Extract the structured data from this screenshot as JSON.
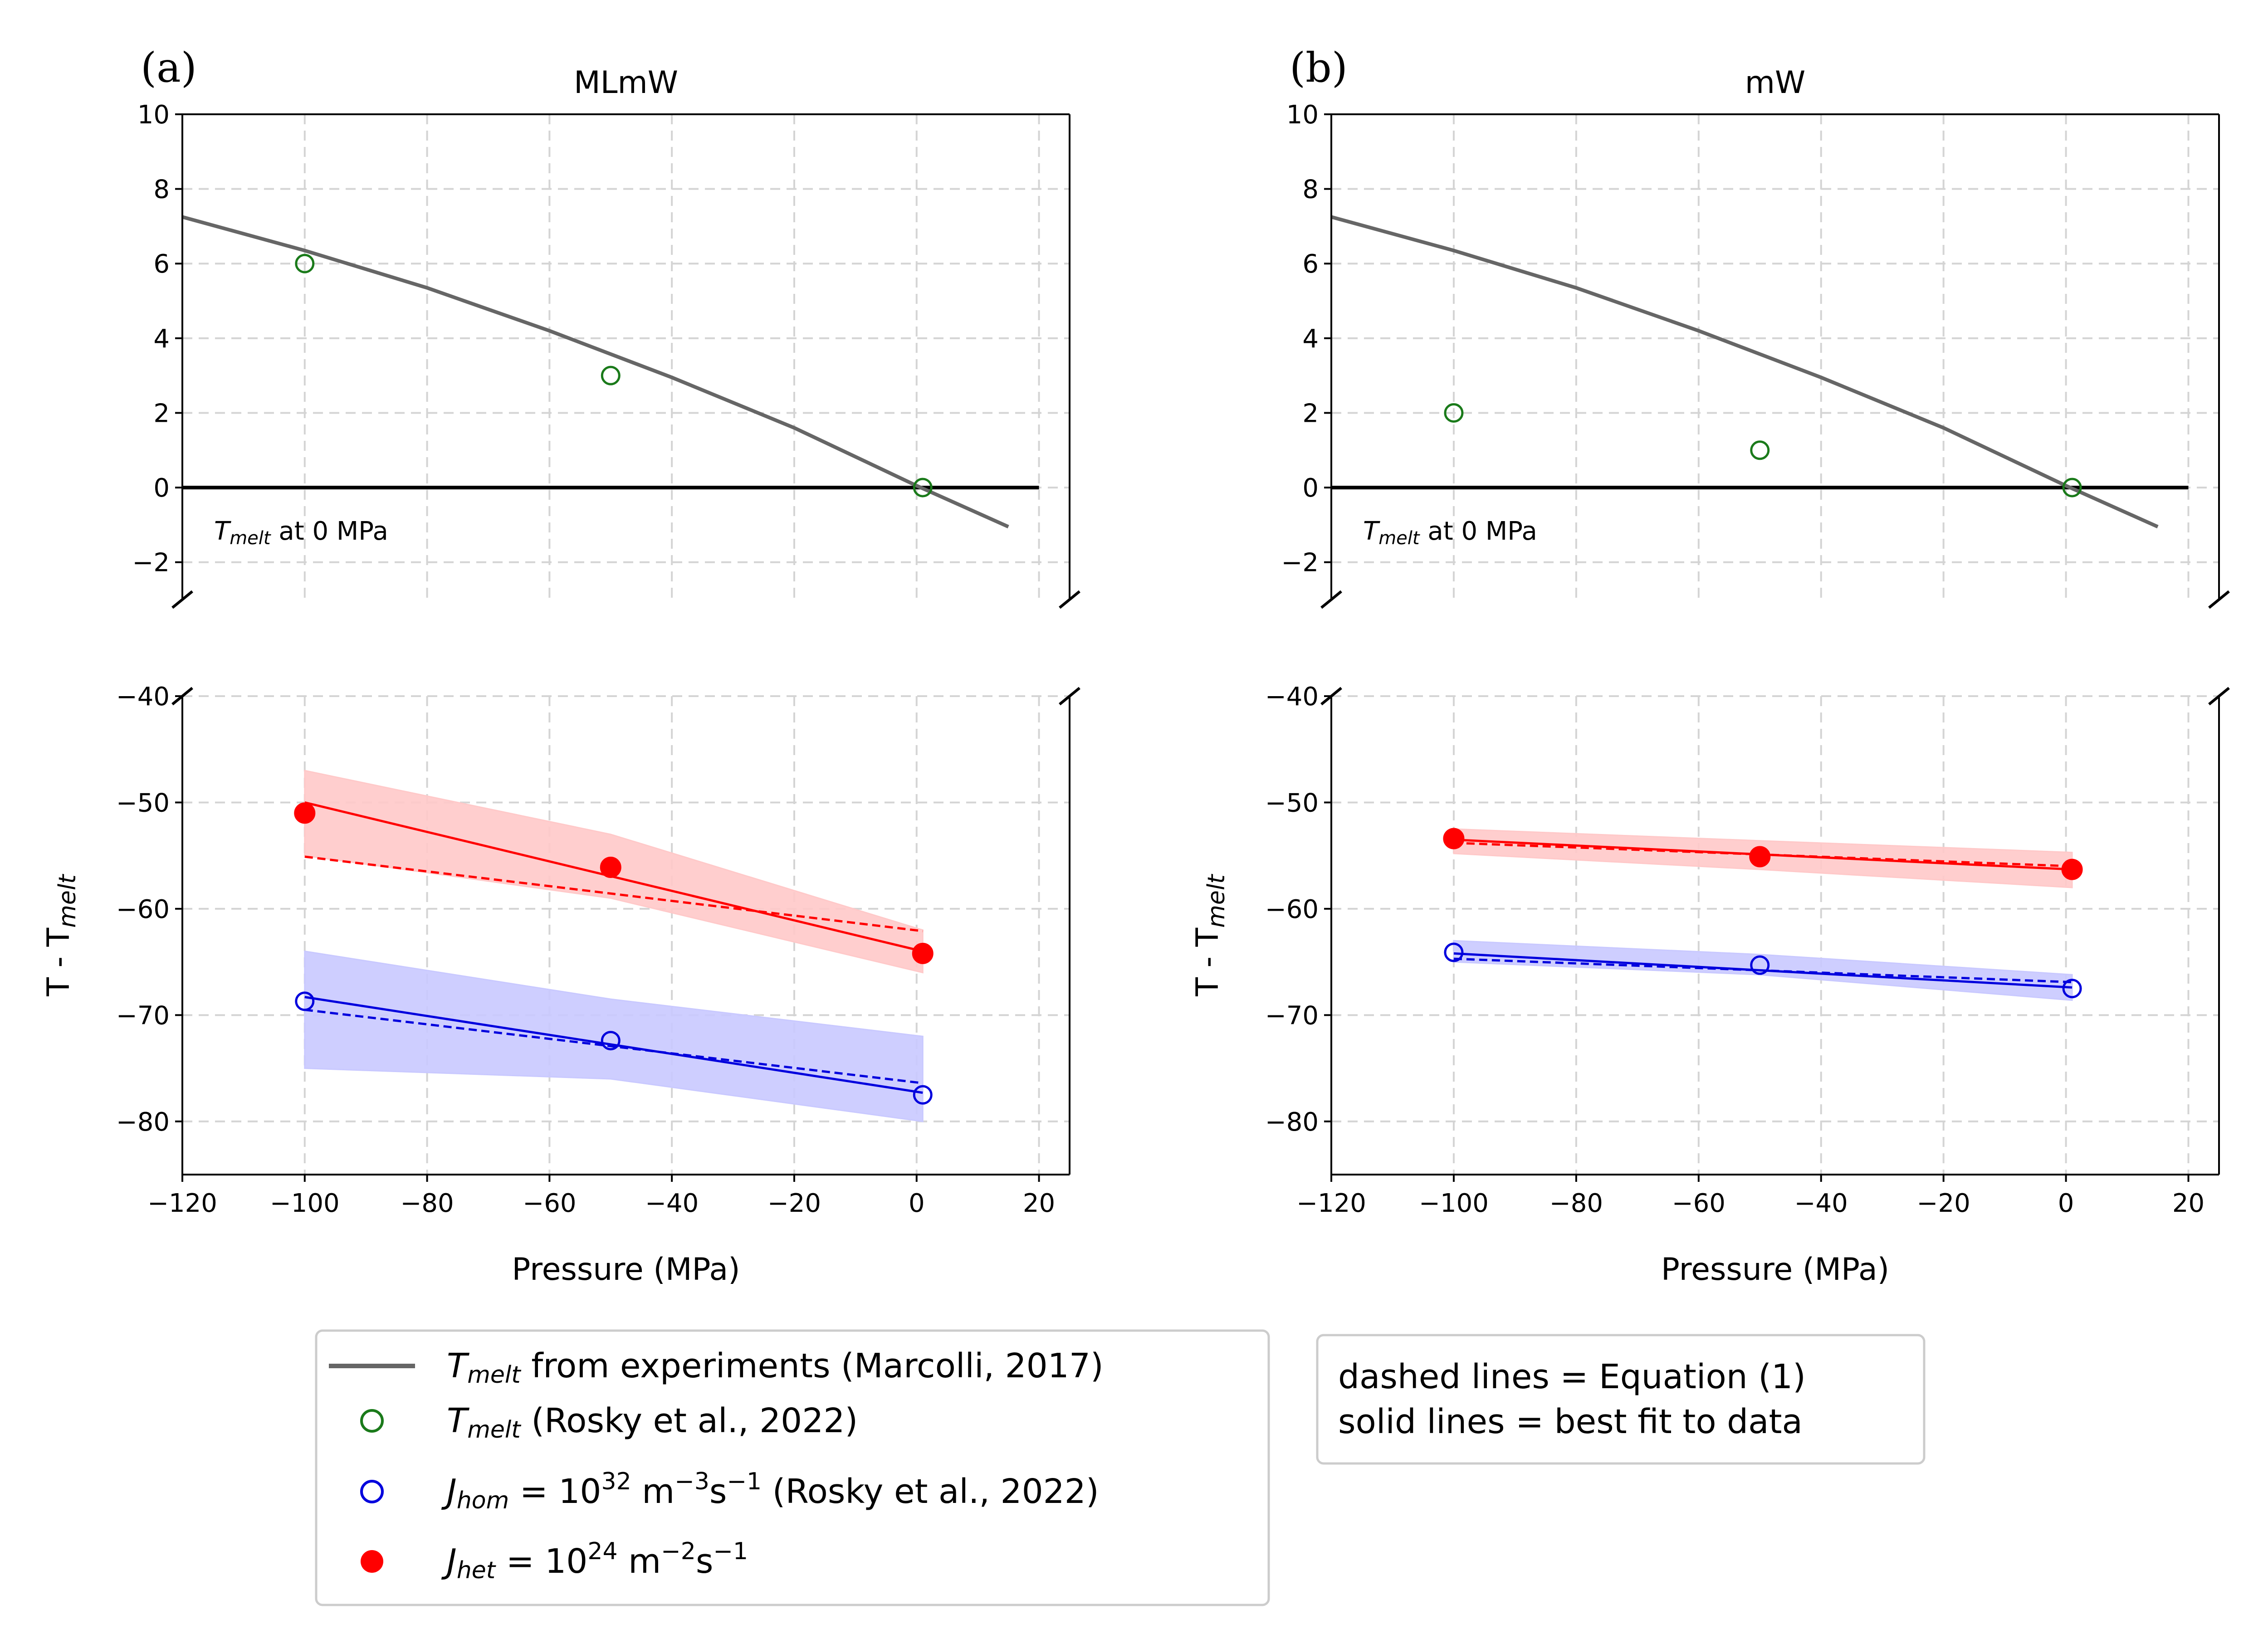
{
  "legend": {
    "items": [
      {
        "text": "T_melt from experiments (Marcolli, 2017)"
      },
      {
        "text": "T_melt (Rosky et al., 2022)"
      },
      {
        "text": "J_hom = 10^32 m^-3 s^-1 (Rosky et al., 2022)"
      },
      {
        "text": "J_het = 10^24 m^-2 s^-1"
      }
    ]
  },
  "note_box": {
    "line1": "dashed lines = Equation (1)",
    "line2": "solid lines = best fit to data"
  },
  "colors": {
    "tmelt_curve": "#666666",
    "rosky_tmelt": "#1a7a1a",
    "hom": "#0000dd",
    "het": "#ff0000",
    "hom_band": "#c9c9ff",
    "het_band": "#ffc9c9"
  },
  "chart_data": [
    {
      "panel": "(a)",
      "title": "MLmW",
      "type": "line",
      "xlabel": "Pressure (MPa)",
      "ylabel": "T - T_melt",
      "xlim": [
        -120,
        25
      ],
      "top_axis": {
        "ylim": [
          -3,
          10
        ],
        "yticks": [
          -2,
          0,
          2,
          4,
          6,
          8,
          10
        ]
      },
      "bottom_axis": {
        "ylim": [
          -85,
          -40
        ],
        "yticks": [
          -40,
          -50,
          -60,
          -70,
          -80
        ]
      },
      "xticks": [
        -120,
        -100,
        -80,
        -60,
        -40,
        -20,
        0,
        20
      ],
      "annotation": "T_melt at 0 MPa",
      "grid": true,
      "tmelt_curve": {
        "x": [
          -120,
          -100,
          -80,
          -60,
          -40,
          -20,
          0,
          15
        ],
        "y": [
          7.25,
          6.35,
          5.35,
          4.2,
          2.95,
          1.6,
          0.05,
          -1.05
        ]
      },
      "tmelt_rosky": {
        "x": [
          -100,
          -50,
          1
        ],
        "y": [
          6,
          3,
          0
        ]
      },
      "hom": {
        "points": {
          "x": [
            -100,
            -50,
            1
          ],
          "y": [
            -68.7,
            -72.4,
            -77.5
          ]
        },
        "fit": {
          "x": [
            -100,
            1
          ],
          "y": [
            -68.3,
            -77.3
          ]
        },
        "equation": {
          "x": [
            -100,
            1
          ],
          "y": [
            -69.5,
            -76.4
          ]
        },
        "band": {
          "x": [
            -100,
            -50,
            1
          ],
          "upper": [
            -64,
            -68.5,
            -72
          ],
          "lower": [
            -75,
            -76,
            -80
          ]
        }
      },
      "het": {
        "points": {
          "x": [
            -100,
            -50,
            1
          ],
          "y": [
            -51,
            -56.1,
            -64.2
          ]
        },
        "fit": {
          "x": [
            -100,
            1
          ],
          "y": [
            -50,
            -64
          ]
        },
        "equation": {
          "x": [
            -100,
            1
          ],
          "y": [
            -55.1,
            -62.1
          ]
        },
        "band": {
          "x": [
            -100,
            -50,
            1
          ],
          "upper": [
            -47,
            -53,
            -62
          ],
          "lower": [
            -55,
            -59,
            -66
          ]
        }
      }
    },
    {
      "panel": "(b)",
      "title": "mW",
      "type": "line",
      "xlabel": "Pressure (MPa)",
      "ylabel": "T - T_melt",
      "xlim": [
        -120,
        25
      ],
      "top_axis": {
        "ylim": [
          -3,
          10
        ],
        "yticks": [
          -2,
          0,
          2,
          4,
          6,
          8,
          10
        ]
      },
      "bottom_axis": {
        "ylim": [
          -85,
          -40
        ],
        "yticks": [
          -40,
          -50,
          -60,
          -70,
          -80
        ]
      },
      "xticks": [
        -120,
        -100,
        -80,
        -60,
        -40,
        -20,
        0,
        20
      ],
      "annotation": "T_melt at 0 MPa",
      "grid": true,
      "tmelt_curve": {
        "x": [
          -120,
          -100,
          -80,
          -60,
          -40,
          -20,
          0,
          15
        ],
        "y": [
          7.25,
          6.35,
          5.35,
          4.2,
          2.95,
          1.6,
          0.05,
          -1.05
        ]
      },
      "tmelt_rosky": {
        "x": [
          -100,
          -50,
          1
        ],
        "y": [
          2,
          1,
          0
        ]
      },
      "hom": {
        "points": {
          "x": [
            -100,
            -50,
            1
          ],
          "y": [
            -64.1,
            -65.3,
            -67.5
          ]
        },
        "fit": {
          "x": [
            -100,
            1
          ],
          "y": [
            -64.2,
            -67.4
          ]
        },
        "equation": {
          "x": [
            -100,
            1
          ],
          "y": [
            -64.7,
            -66.9
          ]
        },
        "band": {
          "x": [
            -100,
            -50,
            1
          ],
          "upper": [
            -63,
            -64.3,
            -66.2
          ],
          "lower": [
            -65,
            -66.2,
            -68.6
          ]
        }
      },
      "het": {
        "points": {
          "x": [
            -100,
            -50,
            1
          ],
          "y": [
            -53.4,
            -55.1,
            -56.3
          ]
        },
        "fit": {
          "x": [
            -100,
            1
          ],
          "y": [
            -53.5,
            -56.3
          ]
        },
        "equation": {
          "x": [
            -100,
            1
          ],
          "y": [
            -53.8,
            -56.0
          ]
        },
        "band": {
          "x": [
            -100,
            -50,
            1
          ],
          "upper": [
            -52.5,
            -53.6,
            -54.7
          ],
          "lower": [
            -54.8,
            -56.3,
            -58
          ]
        }
      }
    }
  ]
}
